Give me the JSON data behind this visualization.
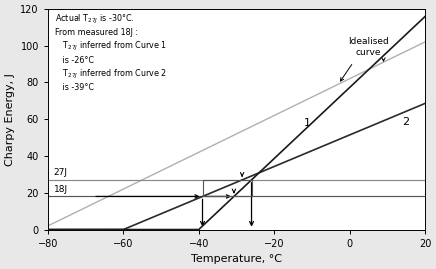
{
  "xlim": [
    -80,
    20
  ],
  "ylim": [
    0,
    120
  ],
  "xticks": [
    -80,
    -60,
    -40,
    -20,
    0,
    20
  ],
  "yticks": [
    0,
    20,
    40,
    60,
    80,
    100,
    120
  ],
  "xlabel": "Temperature, °C",
  "ylabel": "Charpy Energy, J",
  "line27J": 27,
  "line18J": 18,
  "T_curve1_27J": -26,
  "T_curve2_18J": -39,
  "T_curve1_18J": -30.7,
  "T_curve2_27J": -28.5,
  "T_actual_27J": -25,
  "bg_color": "#e8e8e8",
  "plot_bg": "#ffffff",
  "curve1_slope": 1.93,
  "curve1_xint": -40,
  "curve2_slope": 0.857,
  "curve2_x0": -39,
  "curve2_y0": 18,
  "ideal_slope": 1.0,
  "ideal_x0": -80,
  "ideal_y0": 2
}
